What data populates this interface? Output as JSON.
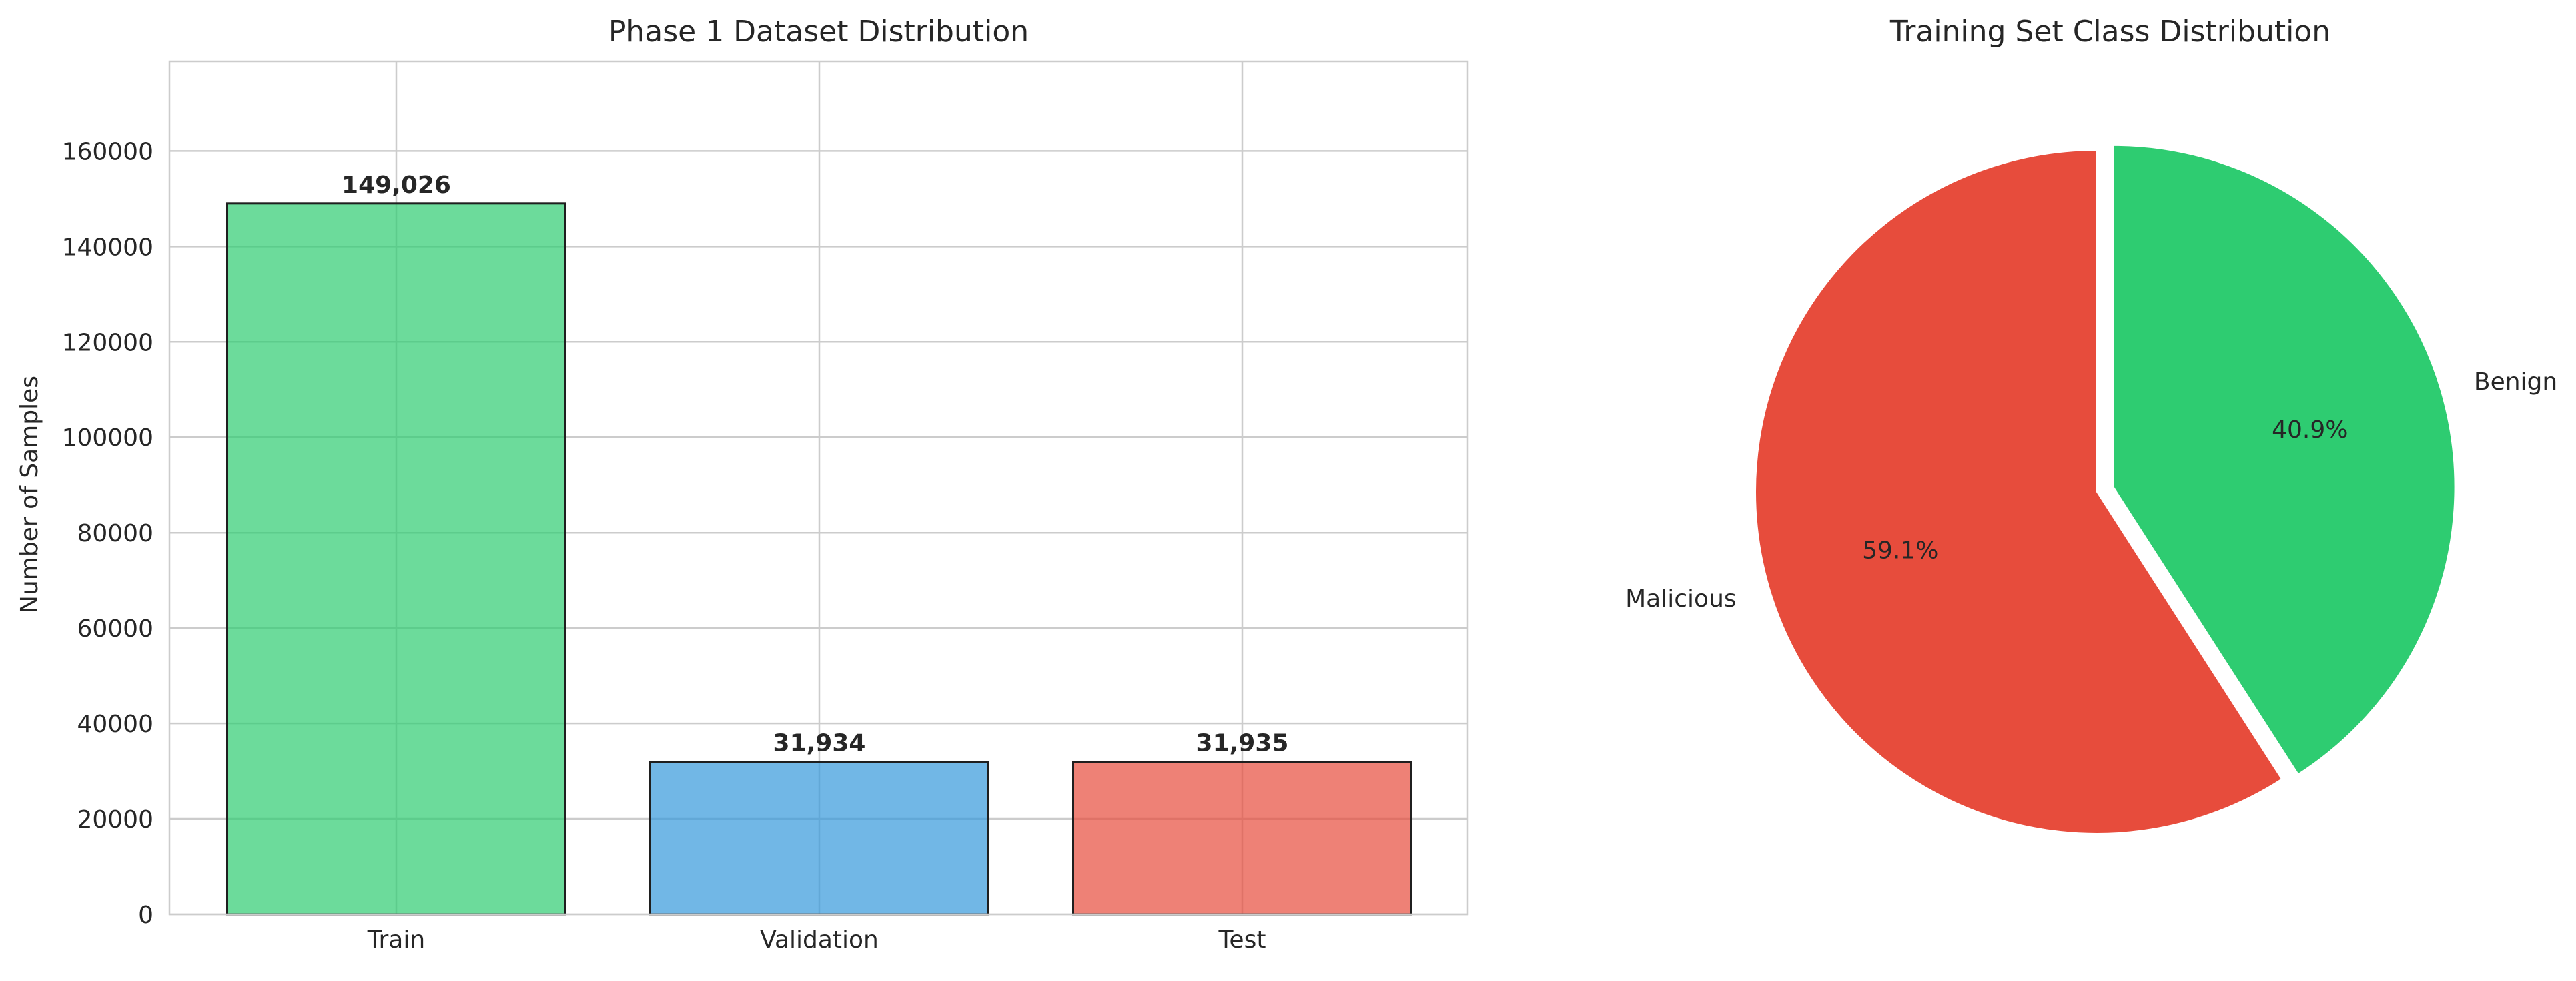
{
  "chart_data": [
    {
      "type": "bar",
      "title": "Phase 1 Dataset Distribution",
      "xlabel": "",
      "ylabel": "Number of Samples",
      "categories": [
        "Train",
        "Validation",
        "Test"
      ],
      "values": [
        149026,
        31934,
        31935
      ],
      "value_labels": [
        "149,026",
        "31,934",
        "31,935"
      ],
      "colors": [
        "#2ecc71",
        "#3498db",
        "#e74c3c"
      ],
      "ylim": [
        0,
        178800
      ],
      "yticks": [
        0,
        20000,
        40000,
        60000,
        80000,
        100000,
        120000,
        140000,
        160000
      ],
      "ytick_labels": [
        "0",
        "20000",
        "40000",
        "60000",
        "80000",
        "100000",
        "120000",
        "140000",
        "160000"
      ],
      "grid": true
    },
    {
      "type": "pie",
      "title": "Training Set Class Distribution",
      "labels": [
        "Malicious",
        "Benign"
      ],
      "values": [
        59.1,
        40.9
      ],
      "pct_labels": [
        "59.1%",
        "40.9%"
      ],
      "colors": [
        "#e74c3c",
        "#2ecc71"
      ],
      "explode": [
        0,
        0.05
      ]
    }
  ]
}
